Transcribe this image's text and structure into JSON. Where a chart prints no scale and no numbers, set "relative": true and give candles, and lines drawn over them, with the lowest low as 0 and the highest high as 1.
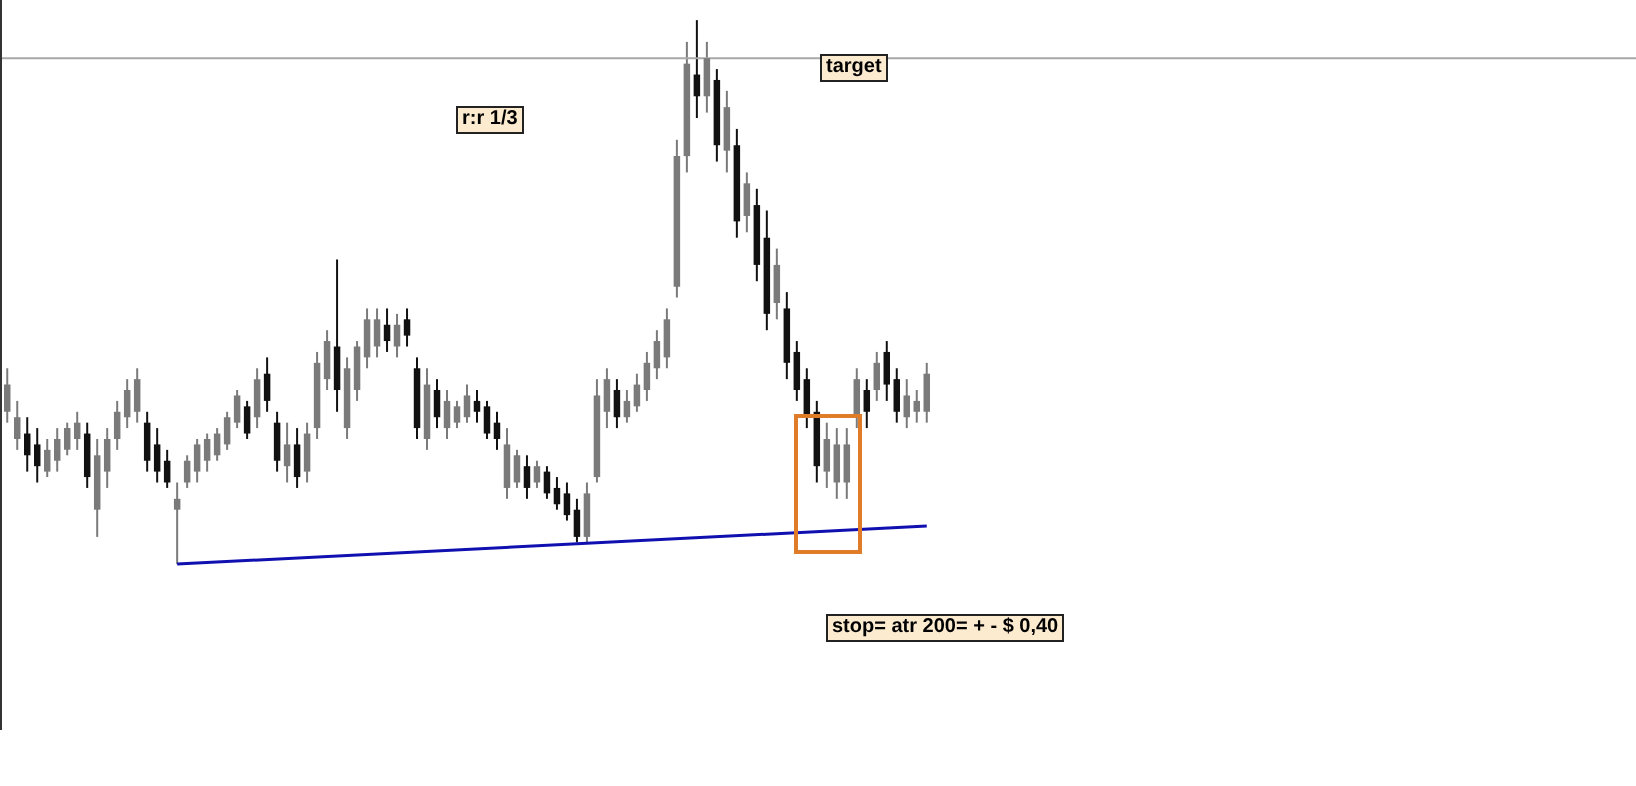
{
  "chart_data": {
    "type": "candlestick",
    "relative": true,
    "categories": [
      null,
      null,
      null,
      null,
      null,
      null,
      null,
      null,
      null,
      null,
      null,
      null,
      null,
      null,
      null,
      null,
      null,
      null,
      null,
      null,
      null,
      null,
      null,
      null,
      null,
      null,
      null,
      null,
      null,
      null,
      null,
      null,
      null,
      null,
      null,
      null,
      null,
      null,
      null,
      null,
      null,
      null,
      null,
      null,
      null,
      null,
      null,
      null,
      null,
      null,
      null,
      null,
      null,
      null,
      null,
      null,
      null,
      null,
      null,
      null,
      null,
      null,
      null,
      null,
      null,
      null,
      null,
      null,
      null,
      null,
      null,
      null,
      null,
      null,
      null,
      null,
      null,
      null,
      null,
      null,
      null,
      null,
      null,
      null,
      null,
      null,
      null,
      null,
      null,
      null,
      null,
      null,
      null
    ],
    "ohlc": [
      [
        0.28,
        0.36,
        0.26,
        0.33
      ],
      [
        0.23,
        0.3,
        0.21,
        0.27
      ],
      [
        0.24,
        0.27,
        0.17,
        0.2
      ],
      [
        0.22,
        0.25,
        0.15,
        0.18
      ],
      [
        0.17,
        0.23,
        0.16,
        0.21
      ],
      [
        0.19,
        0.25,
        0.17,
        0.23
      ],
      [
        0.21,
        0.26,
        0.2,
        0.25
      ],
      [
        0.23,
        0.28,
        0.21,
        0.26
      ],
      [
        0.24,
        0.26,
        0.14,
        0.16
      ],
      [
        0.1,
        0.23,
        0.05,
        0.2
      ],
      [
        0.17,
        0.25,
        0.14,
        0.23
      ],
      [
        0.23,
        0.3,
        0.21,
        0.28
      ],
      [
        0.27,
        0.34,
        0.25,
        0.32
      ],
      [
        0.28,
        0.36,
        0.26,
        0.34
      ],
      [
        0.26,
        0.28,
        0.17,
        0.19
      ],
      [
        0.22,
        0.25,
        0.15,
        0.17
      ],
      [
        0.19,
        0.21,
        0.14,
        0.15
      ],
      [
        0.1,
        0.15,
        0,
        0.12
      ],
      [
        0.15,
        0.2,
        0.14,
        0.19
      ],
      [
        0.17,
        0.23,
        0.15,
        0.22
      ],
      [
        0.19,
        0.24,
        0.17,
        0.23
      ],
      [
        0.2,
        0.25,
        0.19,
        0.24
      ],
      [
        0.22,
        0.28,
        0.21,
        0.27
      ],
      [
        0.26,
        0.32,
        0.25,
        0.31
      ],
      [
        0.29,
        0.3,
        0.23,
        0.24
      ],
      [
        0.27,
        0.36,
        0.25,
        0.34
      ],
      [
        0.35,
        0.38,
        0.28,
        0.3
      ],
      [
        0.26,
        0.28,
        0.17,
        0.19
      ],
      [
        0.18,
        0.26,
        0.15,
        0.22
      ],
      [
        0.22,
        0.25,
        0.14,
        0.16
      ],
      [
        0.17,
        0.26,
        0.15,
        0.24
      ],
      [
        0.25,
        0.39,
        0.23,
        0.37
      ],
      [
        0.34,
        0.43,
        0.32,
        0.41
      ],
      [
        0.4,
        0.56,
        0.28,
        0.32
      ],
      [
        0.25,
        0.38,
        0.23,
        0.36
      ],
      [
        0.32,
        0.41,
        0.3,
        0.4
      ],
      [
        0.38,
        0.47,
        0.36,
        0.45
      ],
      [
        0.4,
        0.47,
        0.38,
        0.45
      ],
      [
        0.44,
        0.47,
        0.39,
        0.41
      ],
      [
        0.4,
        0.46,
        0.38,
        0.44
      ],
      [
        0.45,
        0.47,
        0.4,
        0.42
      ],
      [
        0.36,
        0.38,
        0.23,
        0.25
      ],
      [
        0.23,
        0.36,
        0.21,
        0.33
      ],
      [
        0.32,
        0.34,
        0.25,
        0.27
      ],
      [
        0.25,
        0.32,
        0.23,
        0.3
      ],
      [
        0.26,
        0.3,
        0.25,
        0.29
      ],
      [
        0.27,
        0.33,
        0.26,
        0.31
      ],
      [
        0.3,
        0.32,
        0.26,
        0.28
      ],
      [
        0.29,
        0.3,
        0.23,
        0.24
      ],
      [
        0.26,
        0.28,
        0.21,
        0.23
      ],
      [
        0.14,
        0.25,
        0.12,
        0.22
      ],
      [
        0.15,
        0.21,
        0.14,
        0.2
      ],
      [
        0.18,
        0.2,
        0.12,
        0.14
      ],
      [
        0.15,
        0.19,
        0.14,
        0.18
      ],
      [
        0.17,
        0.18,
        0.12,
        0.13
      ],
      [
        0.14,
        0.16,
        0.1,
        0.11
      ],
      [
        0.13,
        0.15,
        0.08,
        0.09
      ],
      [
        0.1,
        0.12,
        0.04,
        0.05
      ],
      [
        0.05,
        0.15,
        0.04,
        0.13
      ],
      [
        0.16,
        0.34,
        0.15,
        0.31
      ],
      [
        0.28,
        0.36,
        0.25,
        0.34
      ],
      [
        0.32,
        0.34,
        0.25,
        0.27
      ],
      [
        0.27,
        0.32,
        0.26,
        0.3
      ],
      [
        0.29,
        0.35,
        0.28,
        0.33
      ],
      [
        0.32,
        0.39,
        0.3,
        0.37
      ],
      [
        0.36,
        0.43,
        0.34,
        0.41
      ],
      [
        0.38,
        0.47,
        0.36,
        0.45
      ],
      [
        0.51,
        0.78,
        0.49,
        0.75
      ],
      [
        0.75,
        0.96,
        0.72,
        0.92
      ],
      [
        0.9,
        1,
        0.82,
        0.86
      ],
      [
        0.86,
        0.96,
        0.83,
        0.93
      ],
      [
        0.89,
        0.91,
        0.74,
        0.77
      ],
      [
        0.76,
        0.87,
        0.72,
        0.84
      ],
      [
        0.77,
        0.8,
        0.6,
        0.63
      ],
      [
        0.64,
        0.72,
        0.61,
        0.7
      ],
      [
        0.66,
        0.69,
        0.52,
        0.55
      ],
      [
        0.6,
        0.65,
        0.43,
        0.46
      ],
      [
        0.48,
        0.58,
        0.45,
        0.55
      ],
      [
        0.47,
        0.5,
        0.34,
        0.37
      ],
      [
        0.39,
        0.41,
        0.3,
        0.32
      ],
      [
        0.34,
        0.36,
        0.25,
        0.27
      ],
      [
        0.28,
        0.3,
        0.15,
        0.18
      ],
      [
        0.17,
        0.26,
        0.14,
        0.23
      ],
      [
        0.15,
        0.25,
        0.12,
        0.22
      ],
      [
        0.15,
        0.25,
        0.12,
        0.22
      ],
      [
        0.27,
        0.36,
        0.25,
        0.34
      ],
      [
        0.32,
        0.34,
        0.25,
        0.28
      ],
      [
        0.32,
        0.39,
        0.3,
        0.37
      ],
      [
        0.39,
        0.41,
        0.3,
        0.33
      ],
      [
        0.34,
        0.36,
        0.26,
        0.28
      ],
      [
        0.27,
        0.34,
        0.25,
        0.31
      ],
      [
        0.28,
        0.32,
        0.26,
        0.3
      ],
      [
        0.28,
        0.37,
        0.26,
        0.35
      ]
    ],
    "series": [
      {
        "type": "line",
        "color": "#1010b0",
        "values": [
          null,
          null,
          null,
          null,
          null,
          null,
          null,
          null,
          null,
          null,
          null,
          null,
          null,
          null,
          null,
          null,
          null,
          0,
          null,
          null,
          null,
          null,
          null,
          null,
          null,
          null,
          null,
          null,
          null,
          null,
          null,
          null,
          null,
          null,
          null,
          null,
          null,
          null,
          null,
          null,
          null,
          null,
          null,
          null,
          null,
          null,
          null,
          null,
          null,
          null,
          null,
          null,
          null,
          null,
          null,
          null,
          null,
          null,
          null,
          null,
          null,
          null,
          null,
          null,
          null,
          null,
          null,
          null,
          null,
          null,
          null,
          null,
          null,
          null,
          null,
          null,
          null,
          null,
          null,
          null,
          null,
          null,
          null,
          null,
          null,
          null,
          null,
          null,
          null,
          null,
          null,
          null,
          0.07
        ]
      }
    ],
    "ref_lines": [
      {
        "axis": "y",
        "value": 0.93,
        "label": "target",
        "color": "#a8a8a8"
      }
    ],
    "annotations": [
      "r:r 1/3",
      "stop= atr 200= + - $ 0,40"
    ]
  }
}
